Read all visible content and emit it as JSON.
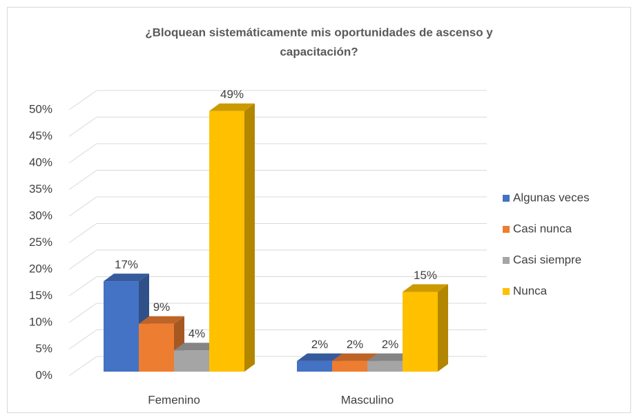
{
  "chart_data": {
    "type": "bar",
    "title": [
      "¿Bloquean sistemáticamente mis oportunidades de ascenso y",
      "capacitación?"
    ],
    "categories": [
      "Femenino",
      "Masculino"
    ],
    "series": [
      {
        "name": "Algunas veces",
        "color": "#4472c4",
        "values": [
          17,
          2
        ],
        "value_labels": [
          "17%",
          "2%"
        ]
      },
      {
        "name": "Casi nunca",
        "color": "#ed7d31",
        "values": [
          9,
          2
        ],
        "value_labels": [
          "9%",
          "2%"
        ]
      },
      {
        "name": "Casi siempre",
        "color": "#a5a5a5",
        "values": [
          4,
          2
        ],
        "value_labels": [
          "4%",
          "2%"
        ]
      },
      {
        "name": "Nunca",
        "color": "#ffc000",
        "values": [
          49,
          15
        ],
        "value_labels": [
          "49%",
          "15%"
        ]
      }
    ],
    "ylim": [
      0,
      50
    ],
    "yticks": [
      {
        "value": 0,
        "label": "0%"
      },
      {
        "value": 5,
        "label": "5%"
      },
      {
        "value": 10,
        "label": "10%"
      },
      {
        "value": 15,
        "label": "15%"
      },
      {
        "value": 20,
        "label": "20%"
      },
      {
        "value": 25,
        "label": "25%"
      },
      {
        "value": 30,
        "label": "30%"
      },
      {
        "value": 35,
        "label": "35%"
      },
      {
        "value": 40,
        "label": "40%"
      },
      {
        "value": 45,
        "label": "45%"
      },
      {
        "value": 50,
        "label": "50%"
      }
    ],
    "grid": true,
    "legend": "right"
  }
}
